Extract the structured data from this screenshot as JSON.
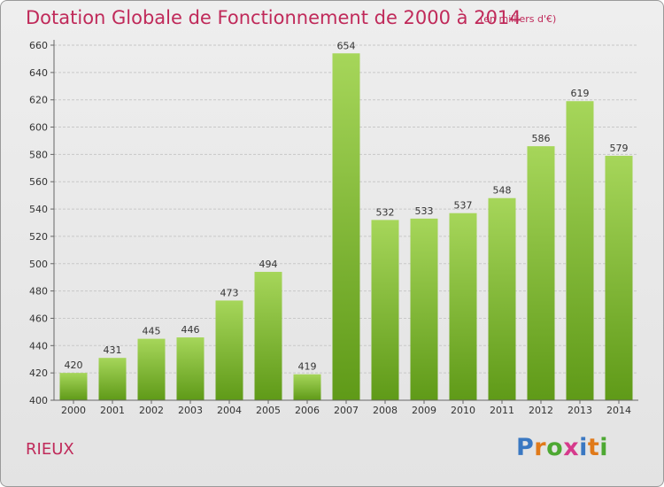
{
  "header": {
    "title": "Dotation Globale de Fonctionnement de 2000 à 2014",
    "unit_note": "(en milliers d'€)"
  },
  "footer": {
    "city": "RIEUX",
    "logo_text": "Proxiti",
    "logo_letter_colors": [
      "#3a78c2",
      "#e07a1a",
      "#4da832",
      "#d63a8c",
      "#3a78c2",
      "#e07a1a",
      "#4da832"
    ]
  },
  "colors": {
    "accent": "#c02a5a",
    "bar_light": "#a6d65a",
    "bar_dark": "#5f9a18",
    "grid": "#c8c8c8"
  },
  "chart_data": {
    "type": "bar",
    "categories": [
      "2000",
      "2001",
      "2002",
      "2003",
      "2004",
      "2005",
      "2006",
      "2007",
      "2008",
      "2009",
      "2010",
      "2011",
      "2012",
      "2013",
      "2014"
    ],
    "values": [
      420,
      431,
      445,
      446,
      473,
      494,
      419,
      654,
      532,
      533,
      537,
      548,
      586,
      619,
      579
    ],
    "ylim": [
      400,
      660
    ],
    "yticks": [
      400,
      420,
      440,
      460,
      480,
      500,
      520,
      540,
      560,
      580,
      600,
      620,
      640,
      660
    ],
    "grid": true,
    "data_labels": true
  }
}
